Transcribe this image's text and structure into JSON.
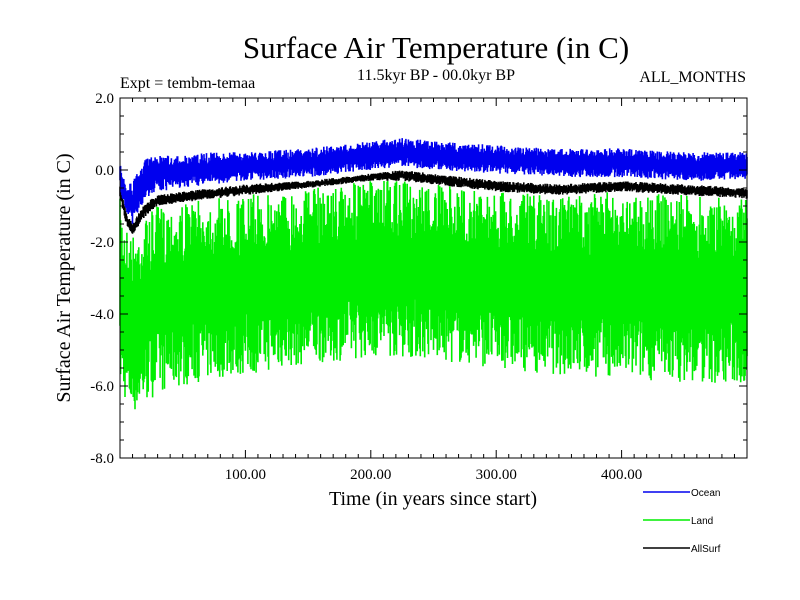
{
  "chart_data": {
    "type": "line",
    "title": "Surface Air Temperature (in C)",
    "subtitle_left": "Expt = tembm-temaa",
    "subtitle_center": "11.5kyr BP - 00.0kyr BP",
    "subtitle_right": "ALL_MONTHS",
    "xlabel": "Time (in years since start)",
    "ylabel": "Surface Air Temperature (in C)",
    "xlim": [
      0,
      500
    ],
    "ylim": [
      -8.0,
      2.0
    ],
    "x_ticks": [
      100,
      200,
      300,
      400
    ],
    "x_tick_labels": [
      "100.00",
      "200.00",
      "300.00",
      "400.00"
    ],
    "y_ticks": [
      -8,
      -6,
      -4,
      -2,
      0,
      2
    ],
    "y_tick_labels": [
      "-8.0",
      "-6.0",
      "-4.0",
      "-2.0",
      "0.0",
      "2.0"
    ],
    "grid": false,
    "legend_position": "bottom-right",
    "series": [
      {
        "name": "Land",
        "color": "#00ee00",
        "x": [
          0,
          5,
          10,
          20,
          30,
          50,
          75,
          100,
          150,
          200,
          225,
          250,
          300,
          350,
          400,
          450,
          500
        ],
        "upper": [
          -0.8,
          -1.5,
          -1.8,
          -1.3,
          -1.0,
          -0.9,
          -0.8,
          -0.7,
          -0.5,
          -0.3,
          -0.3,
          -0.4,
          -0.6,
          -0.7,
          -0.6,
          -0.7,
          -0.8
        ],
        "lower": [
          -6.0,
          -6.5,
          -6.8,
          -6.5,
          -6.2,
          -6.0,
          -5.8,
          -5.7,
          -5.4,
          -5.2,
          -5.2,
          -5.3,
          -5.5,
          -5.7,
          -5.8,
          -5.9,
          -6.0
        ]
      },
      {
        "name": "AllSurf",
        "color": "#000000",
        "x": [
          0,
          5,
          10,
          20,
          30,
          50,
          75,
          100,
          150,
          200,
          225,
          250,
          300,
          350,
          400,
          450,
          500
        ],
        "upper": [
          -0.3,
          -1.2,
          -1.5,
          -0.9,
          -0.7,
          -0.6,
          -0.5,
          -0.4,
          -0.3,
          -0.1,
          0.0,
          -0.1,
          -0.3,
          -0.4,
          -0.3,
          -0.4,
          -0.5
        ],
        "lower": [
          -0.8,
          -1.5,
          -1.8,
          -1.3,
          -1.0,
          -0.9,
          -0.8,
          -0.7,
          -0.5,
          -0.3,
          -0.3,
          -0.4,
          -0.6,
          -0.7,
          -0.6,
          -0.7,
          -0.8
        ]
      },
      {
        "name": "Ocean",
        "color": "#0000ee",
        "x": [
          0,
          5,
          10,
          20,
          30,
          50,
          75,
          100,
          150,
          200,
          225,
          250,
          300,
          350,
          400,
          450,
          500
        ],
        "upper": [
          0.2,
          -0.5,
          -0.3,
          0.3,
          0.4,
          0.4,
          0.5,
          0.5,
          0.6,
          0.8,
          0.9,
          0.8,
          0.7,
          0.6,
          0.6,
          0.5,
          0.5
        ],
        "lower": [
          -0.5,
          -1.2,
          -1.5,
          -0.8,
          -0.6,
          -0.5,
          -0.4,
          -0.3,
          -0.2,
          0.0,
          0.1,
          0.0,
          -0.1,
          -0.2,
          -0.2,
          -0.3,
          -0.3
        ]
      }
    ]
  }
}
